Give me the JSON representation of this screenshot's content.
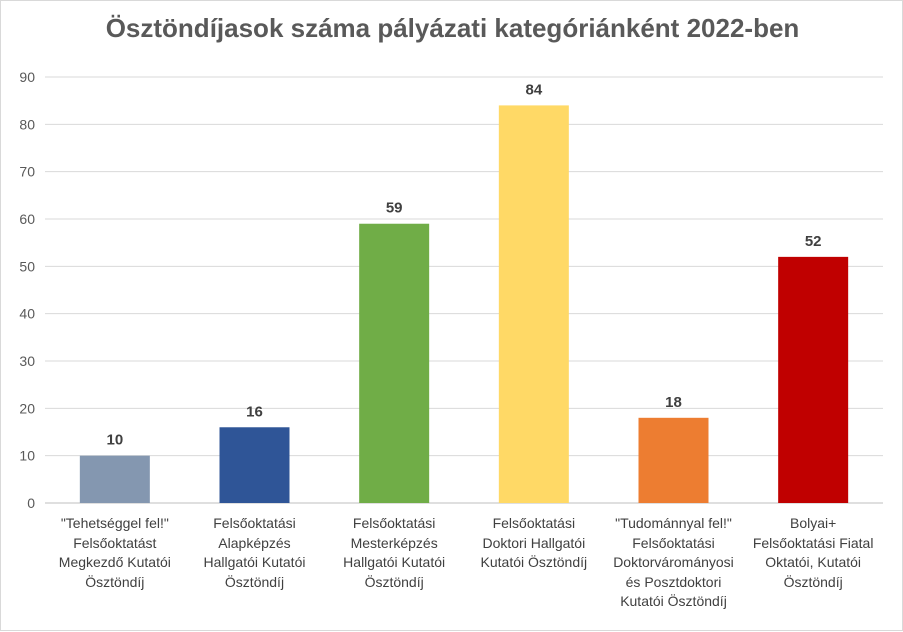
{
  "chart_data": {
    "type": "bar",
    "title": "Ösztöndíjasok száma pályázati kategóriánként 2022-ben",
    "categories": [
      "\"Tehetséggel fel!\" Felsőoktatást Megkezdő Kutatói Ösztöndíj",
      "Felsőoktatási Alapképzés Hallgatói Kutatói Ösztöndíj",
      "Felsőoktatási Mesterképzés Hallgatói Kutatói Ösztöndíj",
      "Felsőoktatási Doktori Hallgatói Kutatói Ösztöndíj",
      "\"Tudománnyal fel!\" Felsőoktatási Doktorvárományosi és Posztdoktori Kutatói Ösztöndíj",
      "Bolyai+ Felsőoktatási Fiatal Oktatói, Kutatói Ösztöndíj"
    ],
    "category_lines": [
      [
        "\"Tehetséggel fel!\"",
        "Felsőoktatást",
        "Megkezdő Kutatói",
        "Ösztöndíj"
      ],
      [
        "Felsőoktatási",
        "Alapképzés",
        "Hallgatói Kutatói",
        "Ösztöndíj"
      ],
      [
        "Felsőoktatási",
        "Mesterképzés",
        "Hallgatói Kutatói",
        "Ösztöndíj"
      ],
      [
        "Felsőoktatási",
        "Doktori Hallgatói",
        "Kutatói Ösztöndíj"
      ],
      [
        "\"Tudománnyal fel!\"",
        "Felsőoktatási",
        "Doktorvárományosi",
        "és Posztdoktori",
        "Kutatói Ösztöndíj"
      ],
      [
        "Bolyai+",
        "Felsőoktatási Fiatal",
        "Oktatói, Kutatói",
        "Ösztöndíj"
      ]
    ],
    "values": [
      10,
      16,
      59,
      84,
      18,
      52
    ],
    "colors": [
      "#8497b0",
      "#2f5597",
      "#70ad47",
      "#ffd966",
      "#ed7d31",
      "#c00000"
    ],
    "xlabel": "",
    "ylabel": "",
    "ylim": [
      0,
      90
    ],
    "yticks": [
      0,
      10,
      20,
      30,
      40,
      50,
      60,
      70,
      80,
      90
    ],
    "grid": true,
    "legend": "none"
  }
}
